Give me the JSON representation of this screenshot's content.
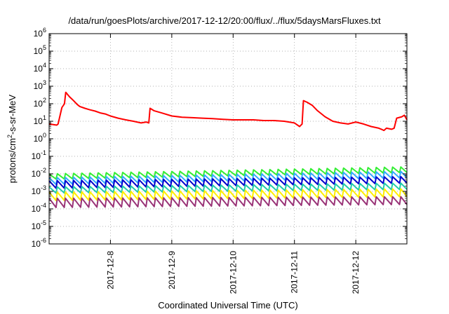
{
  "chart_data": {
    "type": "line",
    "title": "/data/run/goesPlots/archive/2017-12-12/20:00/flux/../flux/5daysMarsFluxes.txt",
    "xlabel": "Coordinated Universal Time (UTC)",
    "ylabel": "protons/cm2-s-sr-MeV",
    "ylabel_parts": {
      "before": "protons/cm",
      "sup": "2",
      "after": "-s-sr-MeV"
    },
    "yscale": "log",
    "ylim": [
      1e-06,
      1000000.0
    ],
    "xlim": [
      "2017-12-07T00:00",
      "2017-12-12T20:00"
    ],
    "yticks": [
      {
        "base": "10",
        "exp": "-6"
      },
      {
        "base": "10",
        "exp": "-5"
      },
      {
        "base": "10",
        "exp": "-4"
      },
      {
        "base": "10",
        "exp": "-3"
      },
      {
        "base": "10",
        "exp": "-2"
      },
      {
        "base": "10",
        "exp": "-1"
      },
      {
        "base": "10",
        "exp": "0"
      },
      {
        "base": "10",
        "exp": "1"
      },
      {
        "base": "10",
        "exp": "2"
      },
      {
        "base": "10",
        "exp": "3"
      },
      {
        "base": "10",
        "exp": "4"
      },
      {
        "base": "10",
        "exp": "5"
      },
      {
        "base": "10",
        "exp": "6"
      }
    ],
    "xticks": [
      "2017-12-8",
      "2017-12-9",
      "2017-12-10",
      "2017-12-11",
      "2017-12-12"
    ],
    "grid": true,
    "series": [
      {
        "color": "#ff0000",
        "x": [
          "2017-12-07T00:00",
          "2017-12-07T03:00",
          "2017-12-07T03:30",
          "2017-12-07T05:00",
          "2017-12-07T06:00",
          "2017-12-07T06:30",
          "2017-12-07T08:00",
          "2017-12-07T09:00",
          "2017-12-07T10:00",
          "2017-12-07T11:00",
          "2017-12-07T12:00",
          "2017-12-07T14:00",
          "2017-12-07T16:00",
          "2017-12-07T18:00",
          "2017-12-07T20:00",
          "2017-12-07T22:00",
          "2017-12-08T00:00",
          "2017-12-08T03:00",
          "2017-12-08T06:00",
          "2017-12-08T09:00",
          "2017-12-08T12:00",
          "2017-12-08T14:00",
          "2017-12-08T15:00",
          "2017-12-08T15:30",
          "2017-12-08T17:00",
          "2017-12-08T20:00",
          "2017-12-09T00:00",
          "2017-12-09T04:00",
          "2017-12-09T08:00",
          "2017-12-09T12:00",
          "2017-12-09T16:00",
          "2017-12-09T20:00",
          "2017-12-10T00:00",
          "2017-12-10T04:00",
          "2017-12-10T08:00",
          "2017-12-10T12:00",
          "2017-12-10T16:00",
          "2017-12-10T20:00",
          "2017-12-11T00:00",
          "2017-12-11T02:00",
          "2017-12-11T03:00",
          "2017-12-11T03:30",
          "2017-12-11T05:00",
          "2017-12-11T07:00",
          "2017-12-11T09:00",
          "2017-12-11T12:00",
          "2017-12-11T15:00",
          "2017-12-11T18:00",
          "2017-12-11T21:00",
          "2017-12-12T00:00",
          "2017-12-12T03:00",
          "2017-12-12T06:00",
          "2017-12-12T09:00",
          "2017-12-12T10:00",
          "2017-12-12T11:00",
          "2017-12-12T12:00",
          "2017-12-12T14:00",
          "2017-12-12T15:00",
          "2017-12-12T16:00",
          "2017-12-12T18:00",
          "2017-12-12T19:00",
          "2017-12-12T20:00"
        ],
        "y": [
          7,
          6,
          7,
          60,
          100,
          450,
          250,
          180,
          130,
          90,
          70,
          55,
          45,
          38,
          30,
          26,
          20,
          15,
          12,
          10,
          8,
          9,
          8,
          55,
          40,
          30,
          20,
          17,
          16,
          15,
          14,
          13,
          12,
          12,
          12,
          11,
          11,
          10,
          8,
          5,
          7,
          150,
          120,
          80,
          40,
          18,
          10,
          8,
          7,
          9,
          7,
          5,
          4,
          3.5,
          3,
          4,
          3.5,
          4,
          15,
          18,
          22,
          12
        ]
      },
      {
        "color": "#33ee33",
        "x_start": "2017-12-07T00:00",
        "x_end": "2017-12-12T20:00",
        "period_hours": 3.2,
        "peaks": [
          0.01,
          0.025
        ],
        "troughs": [
          0.005,
          0.012
        ]
      },
      {
        "color": "#33aaff",
        "x_start": "2017-12-07T00:00",
        "x_end": "2017-12-12T20:00",
        "period_hours": 3.2,
        "peaks": [
          0.006,
          0.014
        ],
        "troughs": [
          0.0025,
          0.006
        ]
      },
      {
        "color": "#0000cc",
        "x_start": "2017-12-07T00:00",
        "x_end": "2017-12-12T20:00",
        "period_hours": 3.2,
        "peaks": [
          0.004,
          0.007
        ],
        "troughs": [
          0.0015,
          0.003
        ]
      },
      {
        "color": "#22ccaa",
        "x_start": "2017-12-07T00:00",
        "x_end": "2017-12-12T20:00",
        "period_hours": 3.2,
        "peaks": [
          0.0018,
          0.003
        ],
        "troughs": [
          0.0008,
          0.0013
        ]
      },
      {
        "color": "#ffee00",
        "x_start": "2017-12-07T00:00",
        "x_end": "2017-12-12T20:00",
        "period_hours": 3.2,
        "peaks": [
          0.0009,
          0.0014
        ],
        "troughs": [
          0.0003,
          0.0005
        ]
      },
      {
        "color": "#993377",
        "x_start": "2017-12-07T00:00",
        "x_end": "2017-12-12T20:00",
        "period_hours": 3.2,
        "peaks": [
          0.0004,
          0.0005
        ],
        "troughs": [
          0.00012,
          0.00018
        ]
      }
    ]
  }
}
